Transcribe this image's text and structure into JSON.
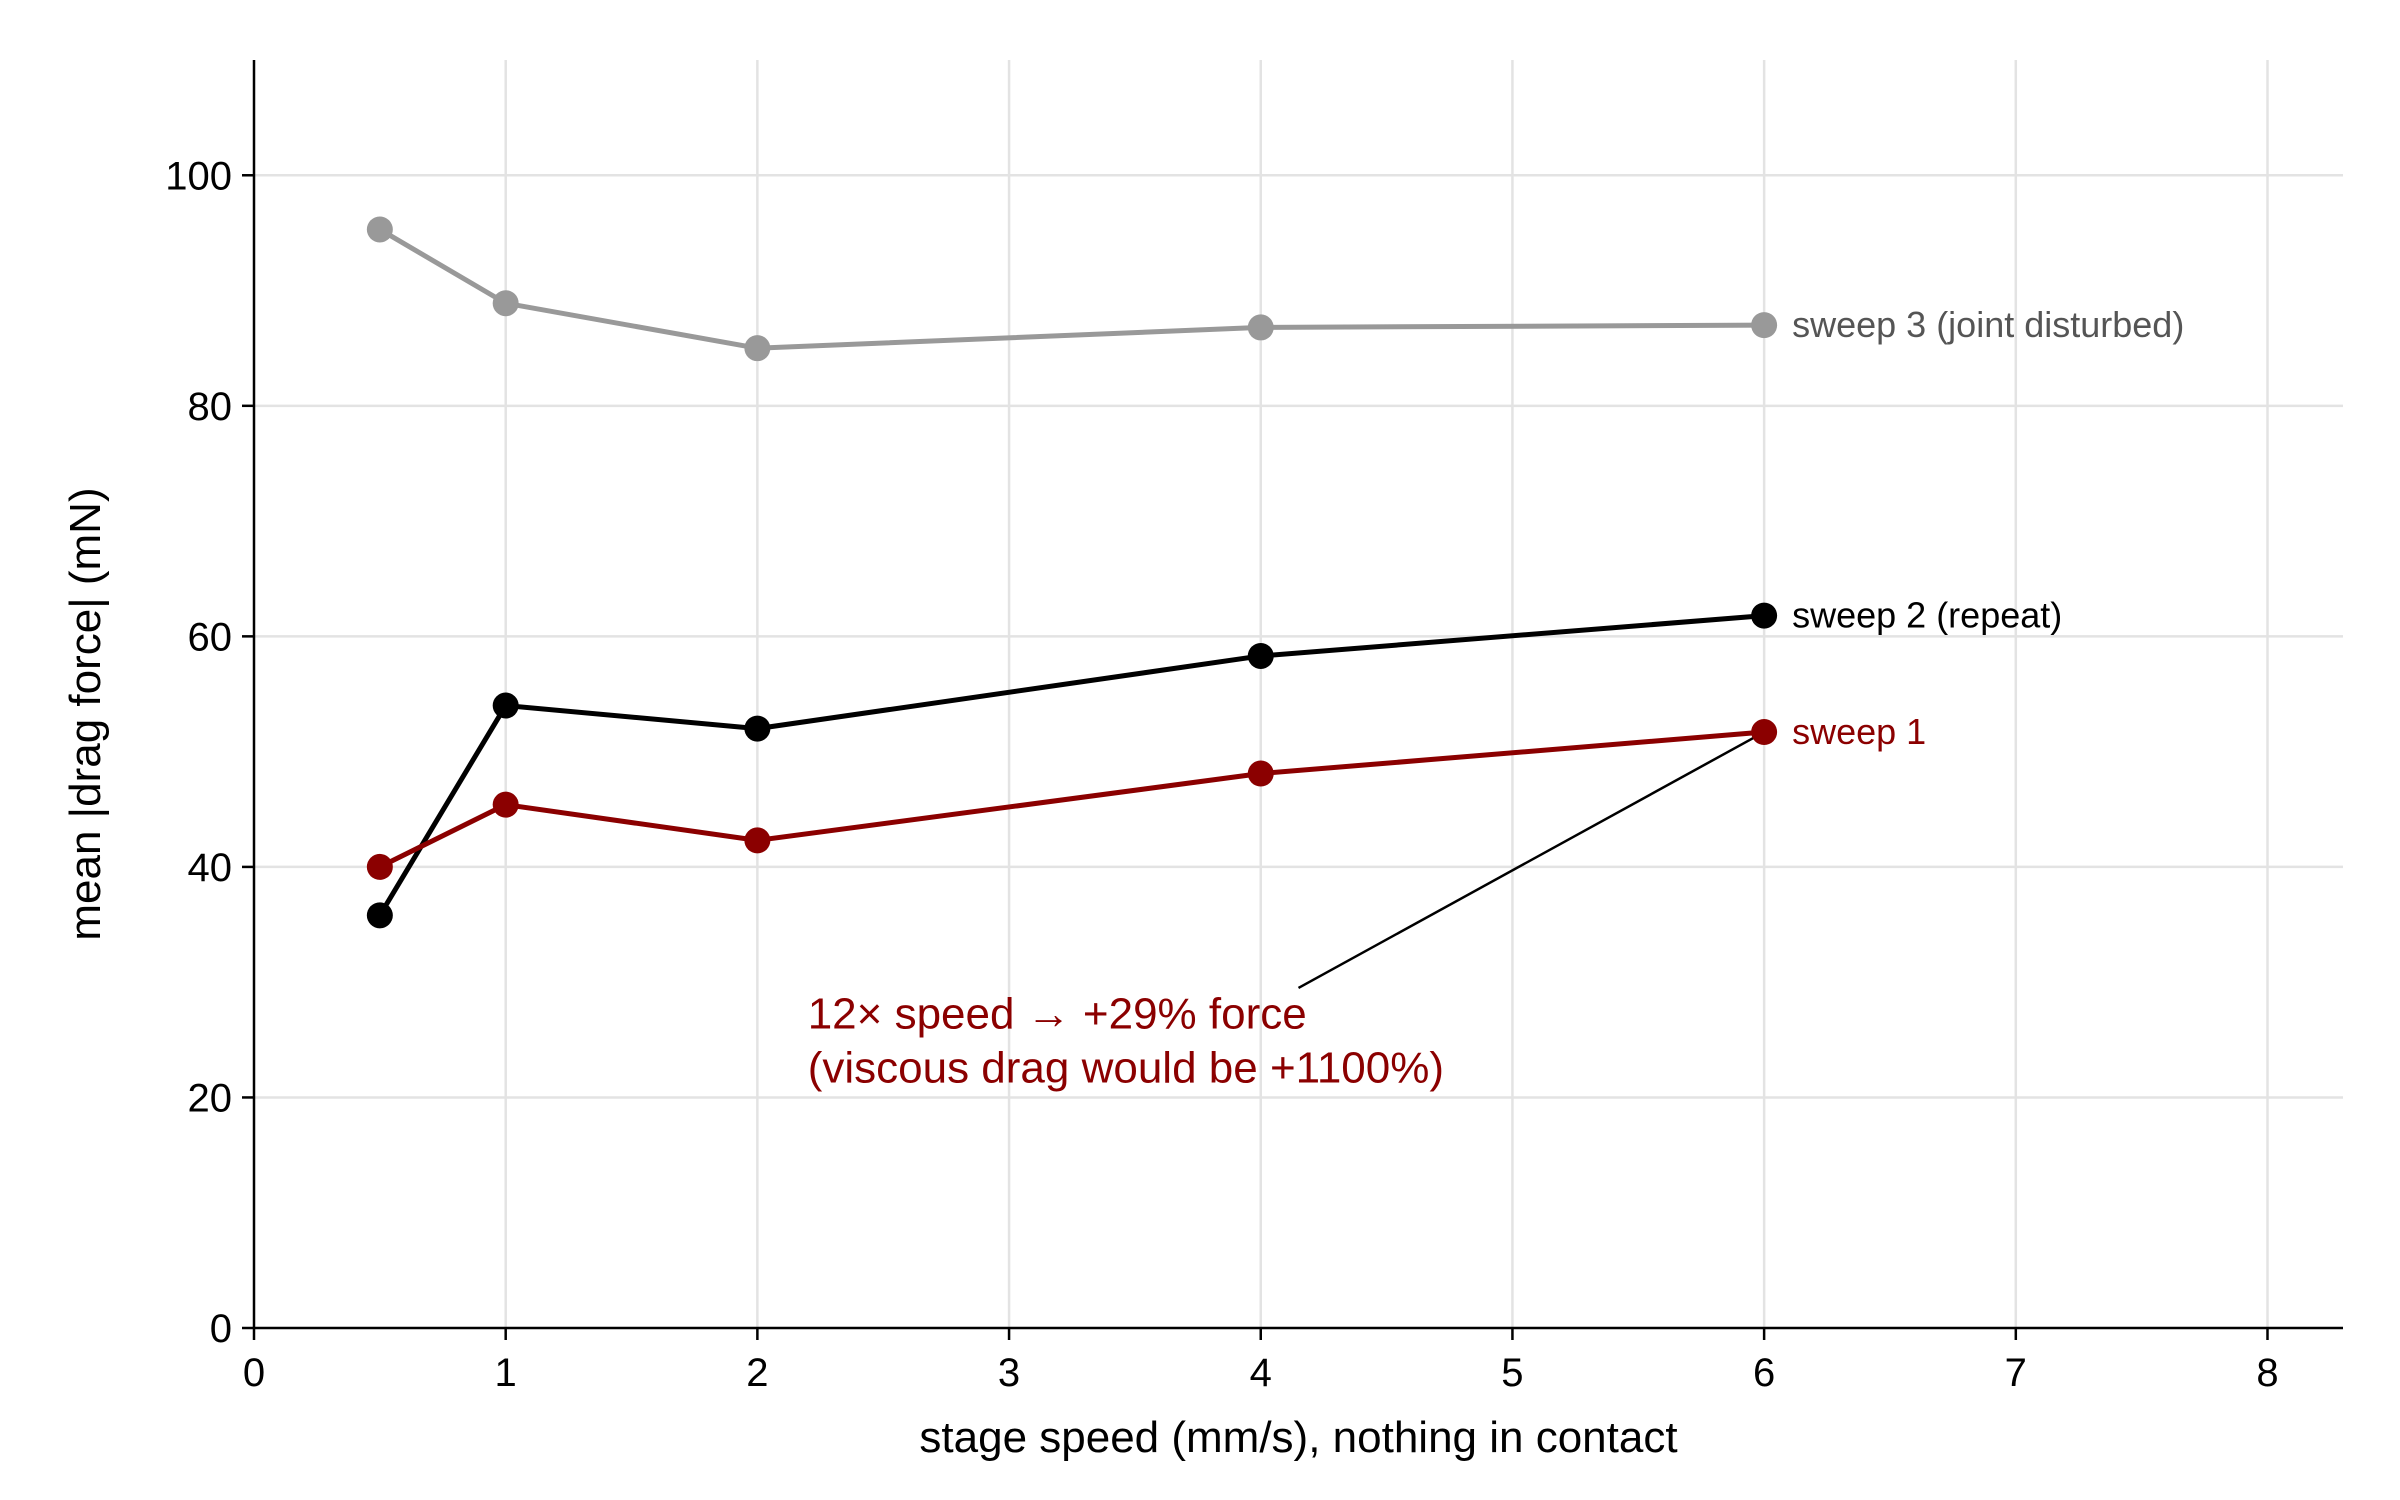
{
  "chart_data": {
    "type": "line",
    "title": "",
    "xlabel": "stage speed (mm/s), nothing in contact",
    "ylabel": "mean |drag force| (mN)",
    "xlim": [
      0,
      8.3
    ],
    "ylim": [
      0,
      110
    ],
    "x_ticks": [
      0,
      1,
      2,
      3,
      4,
      5,
      6,
      7,
      8
    ],
    "y_ticks": [
      0,
      20,
      40,
      60,
      80,
      100
    ],
    "x_tick_labels": [
      "0",
      "1",
      "2",
      "3",
      "4",
      "5",
      "6",
      "7",
      "8"
    ],
    "y_tick_labels": [
      "0",
      "20",
      "40",
      "60",
      "80",
      "100"
    ],
    "grid": true,
    "series": [
      {
        "name": "sweep 3 (joint disturbed)",
        "color": "#999999",
        "label_color": "#555555",
        "x": [
          0.5,
          1,
          2,
          4,
          6
        ],
        "y": [
          95.3,
          88.9,
          85.0,
          86.8,
          87.0
        ]
      },
      {
        "name": "sweep 2 (repeat)",
        "color": "#000000",
        "label_color": "#000000",
        "x": [
          0.5,
          1,
          2,
          4,
          6
        ],
        "y": [
          35.8,
          54.0,
          52.0,
          58.3,
          61.8
        ]
      },
      {
        "name": "sweep 1",
        "color": "#8b0000",
        "label_color": "#8b0000",
        "x": [
          0.5,
          1,
          2,
          4,
          6
        ],
        "y": [
          40.0,
          45.4,
          42.3,
          48.1,
          51.7
        ]
      }
    ],
    "annotation": {
      "lines": [
        "12× speed → +29% force",
        "(viscous drag would be +1100%)"
      ],
      "color": "#8b0000",
      "text_x": 2.2,
      "text_y": 26.0,
      "arrow_from_x": 4.15,
      "arrow_from_y": 29.5,
      "arrow_to_x": 6.0,
      "arrow_to_y": 51.7
    }
  }
}
